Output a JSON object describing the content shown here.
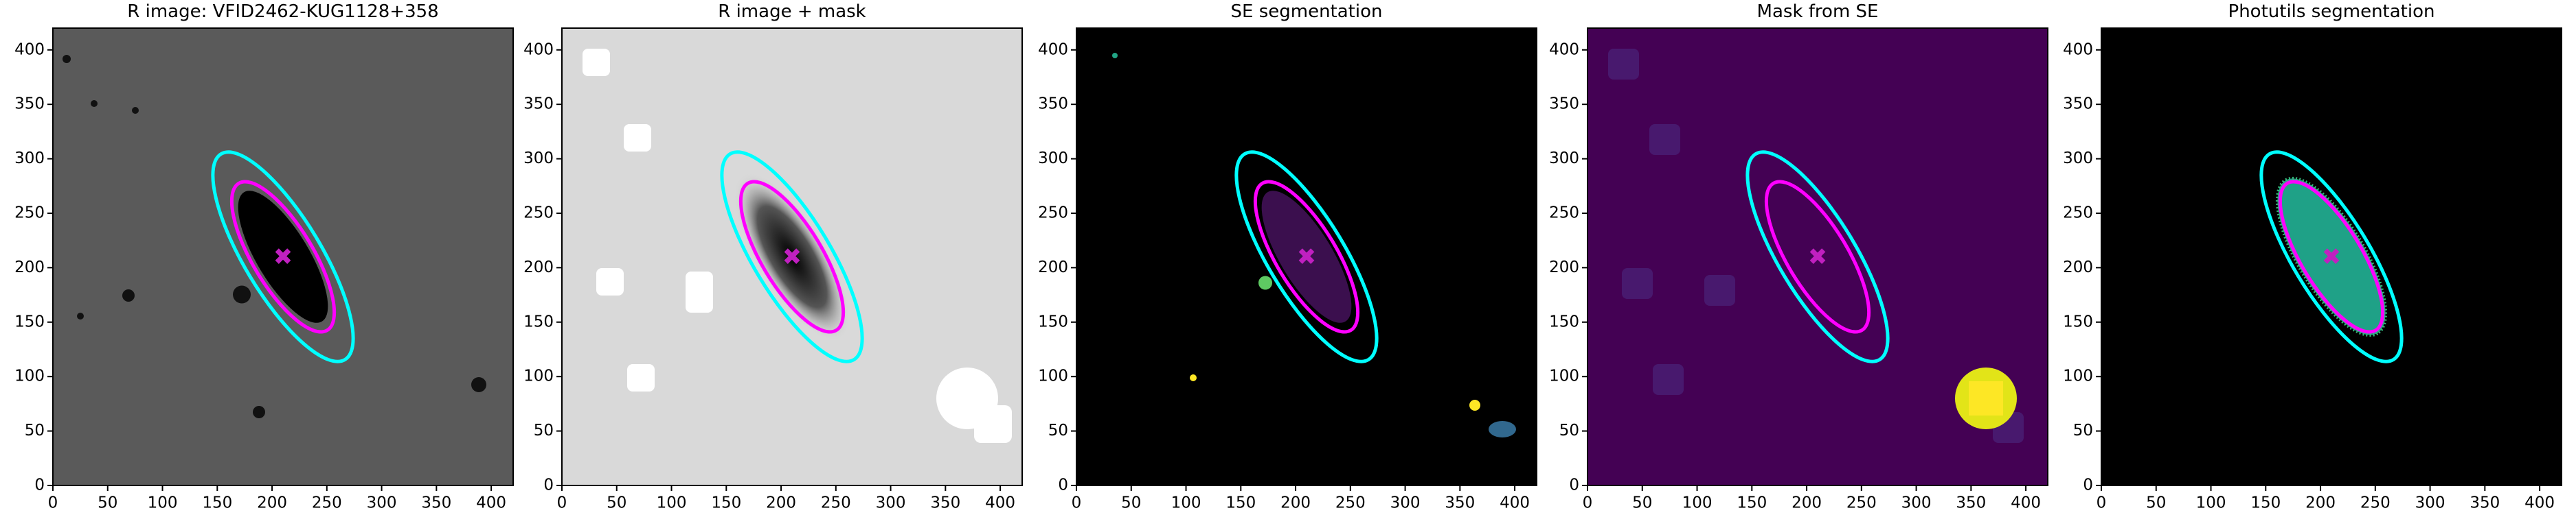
{
  "chart_data": [
    {
      "type": "image",
      "title": "R image: VFID2462-KUG1128+358",
      "background": "#5a5a5a",
      "xlim": [
        0,
        420
      ],
      "ylim": [
        0,
        420
      ],
      "xticks": [
        0,
        50,
        100,
        150,
        200,
        250,
        300,
        350,
        400
      ],
      "yticks": [
        0,
        50,
        100,
        150,
        200,
        250,
        300,
        350,
        400
      ]
    },
    {
      "type": "image",
      "title": "R image + mask",
      "background": "#d9d9d9",
      "xlim": [
        0,
        420
      ],
      "ylim": [
        0,
        420
      ],
      "xticks": [
        0,
        50,
        100,
        150,
        200,
        250,
        300,
        350,
        400
      ],
      "yticks": [
        0,
        50,
        100,
        150,
        200,
        250,
        300,
        350,
        400
      ]
    },
    {
      "type": "image",
      "title": "SE segmentation",
      "background": "#000000",
      "xlim": [
        0,
        420
      ],
      "ylim": [
        0,
        420
      ],
      "xticks": [
        0,
        50,
        100,
        150,
        200,
        250,
        300,
        350,
        400
      ],
      "yticks": [
        0,
        50,
        100,
        150,
        200,
        250,
        300,
        350,
        400
      ]
    },
    {
      "type": "image",
      "title": "Mask from SE",
      "background": "#440154",
      "xlim": [
        0,
        420
      ],
      "ylim": [
        0,
        420
      ],
      "xticks": [
        0,
        50,
        100,
        150,
        200,
        250,
        300,
        350,
        400
      ],
      "yticks": [
        0,
        50,
        100,
        150,
        200,
        250,
        300,
        350,
        400
      ]
    },
    {
      "type": "image",
      "title": "Photutils segmentation",
      "background": "#000000",
      "xlim": [
        0,
        420
      ],
      "ylim": [
        0,
        420
      ],
      "xticks": [
        0,
        50,
        100,
        150,
        200,
        250,
        300,
        350,
        400
      ],
      "yticks": [
        0,
        50,
        100,
        150,
        200,
        250,
        300,
        350,
        400
      ]
    }
  ]
}
